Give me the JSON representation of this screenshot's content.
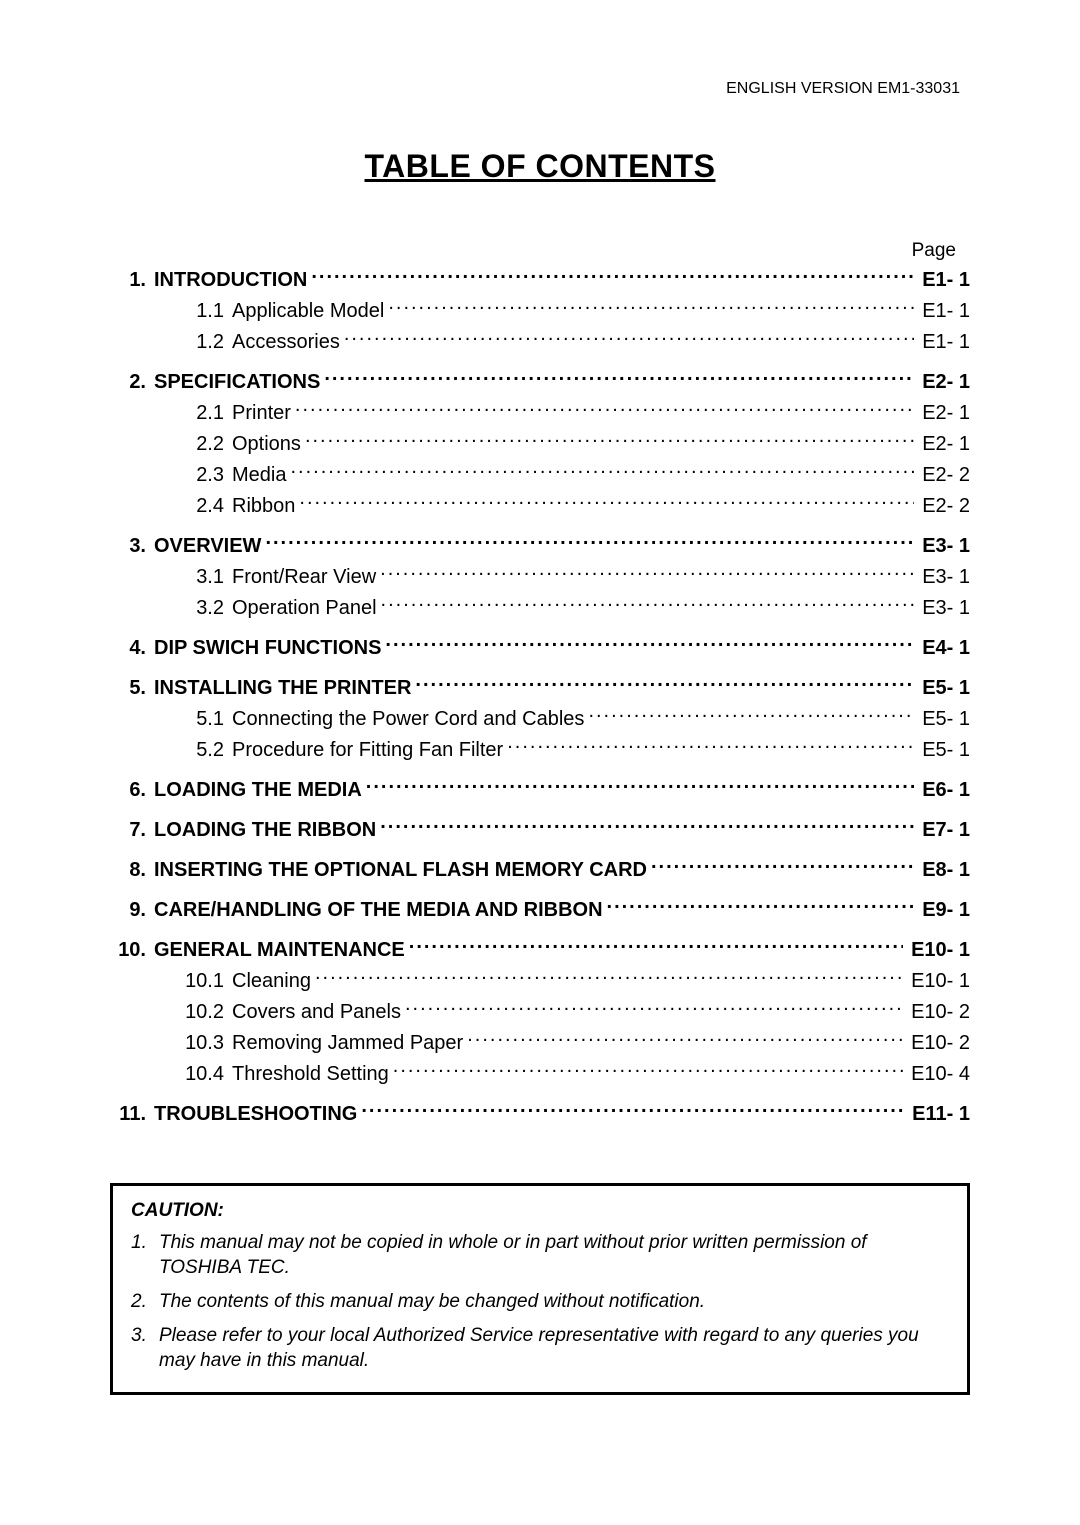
{
  "header": "ENGLISH VERSION EM1-33031",
  "title": "TABLE OF CONTENTS",
  "page_label": "Page",
  "toc": [
    {
      "type": "main",
      "num": "1.",
      "title": "INTRODUCTION",
      "page": "E1- 1"
    },
    {
      "type": "sub",
      "num": "1.1",
      "title": "Applicable Model",
      "page": "E1- 1"
    },
    {
      "type": "sub",
      "num": "1.2",
      "title": "Accessories",
      "page": "E1- 1"
    },
    {
      "type": "gap"
    },
    {
      "type": "main",
      "num": "2.",
      "title": "SPECIFICATIONS",
      "page": "E2- 1"
    },
    {
      "type": "sub",
      "num": "2.1",
      "title": "Printer",
      "page": "E2- 1"
    },
    {
      "type": "sub",
      "num": "2.2",
      "title": "Options",
      "page": "E2- 1"
    },
    {
      "type": "sub",
      "num": "2.3",
      "title": "Media",
      "page": "E2- 2"
    },
    {
      "type": "sub",
      "num": "2.4",
      "title": "Ribbon",
      "page": "E2- 2"
    },
    {
      "type": "gap"
    },
    {
      "type": "main",
      "num": "3.",
      "title": "OVERVIEW",
      "page": "E3- 1"
    },
    {
      "type": "sub",
      "num": "3.1",
      "title": "Front/Rear View",
      "page": "E3- 1"
    },
    {
      "type": "sub",
      "num": "3.2",
      "title": "Operation Panel",
      "page": "E3- 1"
    },
    {
      "type": "gap"
    },
    {
      "type": "main",
      "num": "4.",
      "title": "DIP SWICH FUNCTIONS",
      "page": "E4- 1"
    },
    {
      "type": "gap"
    },
    {
      "type": "main",
      "num": "5.",
      "title": "INSTALLING THE PRINTER",
      "page": "E5- 1"
    },
    {
      "type": "sub",
      "num": "5.1",
      "title": "Connecting the Power Cord and Cables",
      "page": "E5- 1"
    },
    {
      "type": "sub",
      "num": "5.2",
      "title": "Procedure for Fitting Fan Filter",
      "page": "E5- 1"
    },
    {
      "type": "gap"
    },
    {
      "type": "main",
      "num": "6.",
      "title": "LOADING THE MEDIA",
      "page": "E6- 1"
    },
    {
      "type": "gap"
    },
    {
      "type": "main",
      "num": "7.",
      "title": "LOADING THE RIBBON",
      "page": "E7- 1"
    },
    {
      "type": "gap"
    },
    {
      "type": "main",
      "num": "8.",
      "title": "INSERTING THE OPTIONAL FLASH MEMORY CARD",
      "page": "E8- 1"
    },
    {
      "type": "gap"
    },
    {
      "type": "main",
      "num": "9.",
      "title": "CARE/HANDLING OF THE MEDIA AND RIBBON",
      "page": "E9- 1"
    },
    {
      "type": "gap"
    },
    {
      "type": "main",
      "num": "10.",
      "title": "GENERAL MAINTENANCE",
      "page": "E10- 1"
    },
    {
      "type": "sub",
      "num": "10.1",
      "title": "Cleaning",
      "page": "E10- 1"
    },
    {
      "type": "sub",
      "num": "10.2",
      "title": "Covers and Panels",
      "page": "E10- 2"
    },
    {
      "type": "sub",
      "num": "10.3",
      "title": "Removing Jammed Paper",
      "page": "E10- 2"
    },
    {
      "type": "sub",
      "num": "10.4",
      "title": "Threshold Setting",
      "page": "E10- 4"
    },
    {
      "type": "gap"
    },
    {
      "type": "main",
      "num": "11.",
      "title": "TROUBLESHOOTING",
      "page": "E11- 1"
    }
  ],
  "caution": {
    "heading": "CAUTION:",
    "items": [
      {
        "num": "1.",
        "text": "This manual may not be copied in whole or in part without prior written permission of TOSHIBA TEC."
      },
      {
        "num": "2.",
        "text": "The contents of this manual may be changed without notification."
      },
      {
        "num": "3.",
        "text": "Please refer to your local Authorized Service representative with regard to any queries you may have in this manual."
      }
    ]
  }
}
